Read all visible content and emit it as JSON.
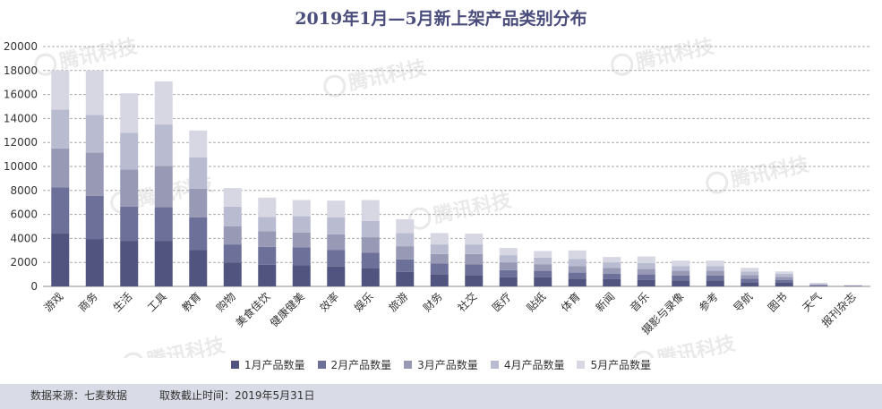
{
  "chart_data": {
    "type": "bar",
    "stacked": true,
    "title": "2019年1月—5月新上架产品类别分布",
    "categories": [
      "游戏",
      "商务",
      "生活",
      "工具",
      "教育",
      "购物",
      "美食佳饮",
      "健康健美",
      "效率",
      "娱乐",
      "旅游",
      "财务",
      "社交",
      "医疗",
      "贴纸",
      "体育",
      "新闻",
      "音乐",
      "摄影与录像",
      "参考",
      "导航",
      "图书",
      "天气",
      "报刊杂志"
    ],
    "series": [
      {
        "name": "1月产品数量",
        "color": "#51547f",
        "values": [
          4400,
          3950,
          3800,
          3800,
          3050,
          2000,
          1800,
          1750,
          1650,
          1550,
          1200,
          1000,
          950,
          750,
          750,
          650,
          600,
          550,
          500,
          500,
          350,
          300,
          50,
          30
        ]
      },
      {
        "name": "2月产品数量",
        "color": "#6d7199",
        "values": [
          3850,
          3600,
          2850,
          2800,
          2700,
          1500,
          1500,
          1500,
          1400,
          1250,
          1050,
          900,
          900,
          600,
          550,
          500,
          450,
          450,
          400,
          400,
          300,
          250,
          50,
          20
        ]
      },
      {
        "name": "3月产品数量",
        "color": "#9799b5",
        "values": [
          3250,
          3600,
          3100,
          3450,
          2400,
          1500,
          1300,
          1250,
          1300,
          1300,
          1100,
          800,
          850,
          650,
          550,
          550,
          500,
          450,
          400,
          400,
          300,
          250,
          50,
          20
        ]
      },
      {
        "name": "4月产品数量",
        "color": "#b9bbd0",
        "values": [
          3250,
          3150,
          3050,
          3450,
          2600,
          1650,
          1200,
          1350,
          1400,
          1350,
          1100,
          800,
          800,
          600,
          550,
          600,
          450,
          500,
          400,
          400,
          300,
          250,
          50,
          20
        ]
      },
      {
        "name": "5月产品数量",
        "color": "#d6d7e3",
        "values": [
          3250,
          3700,
          3300,
          3600,
          2250,
          1550,
          1600,
          1350,
          1400,
          1750,
          1150,
          950,
          900,
          600,
          550,
          700,
          450,
          550,
          450,
          450,
          300,
          200,
          100,
          20
        ]
      }
    ],
    "yaxis": {
      "min": 0,
      "max": 20000,
      "step": 2000
    },
    "grid": true,
    "legend": "bottom"
  },
  "watermark": "腾讯科技",
  "footer": {
    "source": "数据来源：七麦数据",
    "cutoff": "取数截止时间：2019年5月31日"
  }
}
